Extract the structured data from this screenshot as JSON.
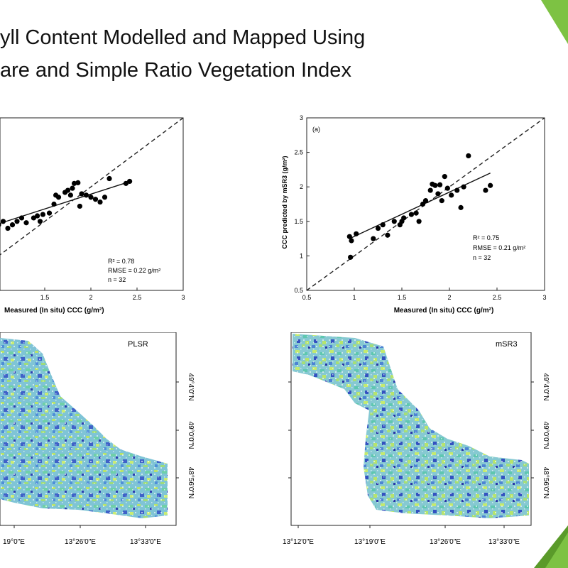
{
  "slide": {
    "title_line1": "yll Content Modelled and Mapped Using",
    "title_line2": "are and Simple Ratio Vegetation Index",
    "accent_color": "#7dc243"
  },
  "chart_data": [
    {
      "type": "scatter",
      "panel": "left-scatter",
      "xlabel": "Measured (In situ) CCC (g/m²)",
      "ylabel": "",
      "xlim": [
        0.5,
        3
      ],
      "ylim": [
        0.5,
        3
      ],
      "x_ticks": [
        "1.5",
        "2",
        "2.5",
        "3"
      ],
      "stats": [
        "R² = 0.78",
        "RMSE = 0.22 g/m²",
        "n = 32"
      ],
      "one_to_one_line": true,
      "fit_line": {
        "from": [
          0.5,
          1.25
        ],
        "to": [
          2.43,
          2.08
        ]
      },
      "points": [
        [
          0.98,
          1.5
        ],
        [
          1.0,
          1.45
        ],
        [
          1.05,
          1.5
        ],
        [
          1.1,
          1.4
        ],
        [
          1.15,
          1.45
        ],
        [
          1.2,
          1.5
        ],
        [
          1.25,
          1.55
        ],
        [
          1.3,
          1.48
        ],
        [
          1.38,
          1.55
        ],
        [
          1.42,
          1.58
        ],
        [
          1.45,
          1.5
        ],
        [
          1.48,
          1.6
        ],
        [
          1.55,
          1.62
        ],
        [
          1.6,
          1.75
        ],
        [
          1.62,
          1.88
        ],
        [
          1.65,
          1.85
        ],
        [
          1.72,
          1.92
        ],
        [
          1.75,
          1.95
        ],
        [
          1.78,
          1.88
        ],
        [
          1.8,
          1.98
        ],
        [
          1.82,
          2.05
        ],
        [
          1.86,
          2.06
        ],
        [
          1.88,
          1.72
        ],
        [
          1.9,
          1.9
        ],
        [
          1.95,
          1.88
        ],
        [
          2.0,
          1.85
        ],
        [
          2.05,
          1.82
        ],
        [
          2.1,
          1.78
        ],
        [
          2.15,
          1.85
        ],
        [
          2.2,
          2.12
        ],
        [
          2.38,
          2.05
        ],
        [
          2.42,
          2.08
        ]
      ]
    },
    {
      "type": "scatter",
      "panel": "right-scatter",
      "panel_label": "(a)",
      "xlabel": "Measured (In situ) CCC (g/m²)",
      "ylabel": "CCC predicted by mSR3 (g/m²)",
      "xlim": [
        0.5,
        3
      ],
      "ylim": [
        0.5,
        3
      ],
      "x_ticks": [
        "0.5",
        "1",
        "1.5",
        "2",
        "2.5",
        "3"
      ],
      "y_ticks": [
        "0.5",
        "1",
        "1.5",
        "2",
        "2.5",
        "3"
      ],
      "stats": [
        "R² = 0.75",
        "RMSE = 0.21 g/m²",
        "n = 32"
      ],
      "one_to_one_line": true,
      "fit_line": {
        "from": [
          0.95,
          1.25
        ],
        "to": [
          2.43,
          2.2
        ]
      },
      "points": [
        [
          0.95,
          1.28
        ],
        [
          0.96,
          0.98
        ],
        [
          0.97,
          1.22
        ],
        [
          1.02,
          1.32
        ],
        [
          1.2,
          1.25
        ],
        [
          1.25,
          1.4
        ],
        [
          1.3,
          1.45
        ],
        [
          1.35,
          1.3
        ],
        [
          1.42,
          1.5
        ],
        [
          1.48,
          1.45
        ],
        [
          1.5,
          1.5
        ],
        [
          1.52,
          1.55
        ],
        [
          1.6,
          1.6
        ],
        [
          1.65,
          1.62
        ],
        [
          1.68,
          1.5
        ],
        [
          1.72,
          1.75
        ],
        [
          1.75,
          1.8
        ],
        [
          1.8,
          1.95
        ],
        [
          1.82,
          2.04
        ],
        [
          1.85,
          2.02
        ],
        [
          1.88,
          1.9
        ],
        [
          1.9,
          2.03
        ],
        [
          1.92,
          1.8
        ],
        [
          1.95,
          2.15
        ],
        [
          1.98,
          1.98
        ],
        [
          2.02,
          1.88
        ],
        [
          2.08,
          1.95
        ],
        [
          2.12,
          1.7
        ],
        [
          2.15,
          2.0
        ],
        [
          2.2,
          2.45
        ],
        [
          2.38,
          1.95
        ],
        [
          2.43,
          2.02
        ]
      ]
    }
  ],
  "maps": [
    {
      "label": "PLSR",
      "lat_ticks": [
        "49°4'0\"N",
        "49°0'0\"N",
        "48°56'0\"N"
      ],
      "lon_ticks": [
        "19°0\"E",
        "13°26'0\"E",
        "13°33'0\"E"
      ]
    },
    {
      "label": "mSR3",
      "lat_ticks": [
        "49°4'0\"N",
        "49°0'0\"N",
        "48°56'0\"N"
      ],
      "lon_ticks": [
        "13°12'0\"E",
        "13°19'0\"E",
        "13°26'0\"E",
        "13°33'0\"E"
      ]
    }
  ]
}
